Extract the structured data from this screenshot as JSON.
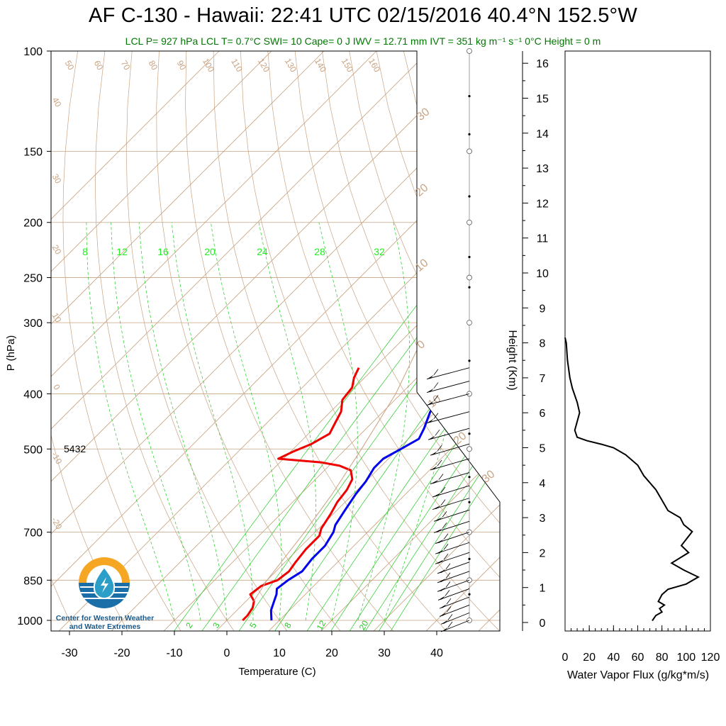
{
  "title": "AF C-130 - Hawaii: 22:41 UTC 02/15/2016  40.4°N 152.5°W",
  "subtitle": "LCL P= 927 hPa  LCL T= 0.7°C  SWI= 10  Cape= 0 J  IWV = 12.71 mm  IVT = 351 kg m⁻¹ s⁻¹  0°C Height = 0 m",
  "logo": {
    "name": "cw3e-logo-icon",
    "line1": "Center for Western Weather",
    "line2": "and Water Extremes",
    "colors": {
      "orange": "#f5a623",
      "blue": "#1a6fa8",
      "teal": "#2c9fc9"
    }
  },
  "chart_data": [
    {
      "type": "line",
      "subtype": "skew-t",
      "xlabel": "Temperature (C)",
      "ylabel": "P (hPa)",
      "y_scale": "log",
      "xlim": [
        -34,
        52
      ],
      "ylim": [
        1050,
        100
      ],
      "x_ticks": [
        "-30",
        "-20",
        "-10",
        "0",
        "10",
        "20",
        "30",
        "40"
      ],
      "y_ticks": [
        "100",
        "150",
        "200",
        "250",
        "300",
        "400",
        "500",
        "700",
        "850",
        "1000"
      ],
      "annotation": "5432",
      "mixing_ratio_labels": [
        "8",
        "12",
        "16",
        "20",
        "24",
        "28",
        "32"
      ],
      "low_mixing_labels": [
        "2",
        "3",
        "5",
        "8",
        "12",
        "20"
      ],
      "dry_adiabat_labels": [
        "50",
        "60",
        "70",
        "80",
        "90",
        "100",
        "110",
        "120",
        "130",
        "140",
        "150",
        "160"
      ],
      "left_theta_labels": [
        "40",
        "30",
        "20",
        "10",
        "0",
        "-10",
        "-20"
      ],
      "right_theta_labels": [
        "30",
        "20",
        "10",
        "0",
        "10",
        "20",
        "30"
      ],
      "colors": {
        "temperature": "#0000ee",
        "dewpoint": "#ee0000",
        "adiabat": "#c8a382",
        "mixing": "#22cc22",
        "parcel": "#c8a382"
      },
      "series": [
        {
          "name": "Temperature",
          "color": "#0000ee",
          "points": [
            [
              -6.5,
              360
            ],
            [
              -4.5,
              380
            ],
            [
              -2,
              400
            ],
            [
              -1,
              430
            ],
            [
              1,
              460
            ],
            [
              2,
              480
            ],
            [
              0.5,
              500
            ],
            [
              -1,
              520
            ],
            [
              -1,
              540
            ],
            [
              0,
              570
            ],
            [
              0.5,
              600
            ],
            [
              1.5,
              640
            ],
            [
              2.5,
              680
            ],
            [
              3.5,
              700
            ],
            [
              4.5,
              740
            ],
            [
              4.5,
              780
            ],
            [
              5,
              820
            ],
            [
              4,
              850
            ],
            [
              3.5,
              880
            ],
            [
              4.5,
              900
            ],
            [
              5.5,
              930
            ],
            [
              6.5,
              960
            ],
            [
              8.5,
              1000
            ]
          ]
        },
        {
          "name": "Dewpoint",
          "color": "#ee0000",
          "points": [
            [
              -23,
              360
            ],
            [
              -22,
              375
            ],
            [
              -20.5,
              390
            ],
            [
              -20,
              410
            ],
            [
              -18,
              430
            ],
            [
              -17,
              450
            ],
            [
              -16,
              470
            ],
            [
              -17.5,
              490
            ],
            [
              -19.5,
              505
            ],
            [
              -21,
              520
            ],
            [
              -12,
              528
            ],
            [
              -8,
              535
            ],
            [
              -5,
              545
            ],
            [
              -3,
              565
            ],
            [
              -2,
              590
            ],
            [
              -1.5,
              620
            ],
            [
              -0.5,
              650
            ],
            [
              0.5,
              690
            ],
            [
              1.5,
              710
            ],
            [
              1.5,
              750
            ],
            [
              2,
              790
            ],
            [
              2.5,
              820
            ],
            [
              2,
              850
            ],
            [
              0,
              870
            ],
            [
              -0.5,
              900
            ],
            [
              1.5,
              925
            ],
            [
              2.5,
              950
            ],
            [
              3,
              980
            ],
            [
              3,
              1000
            ]
          ]
        },
        {
          "name": "Parcel",
          "color": "#c8a382",
          "points": [
            [
              1.5,
              927
            ],
            [
              0,
              850
            ],
            [
              -2,
              700
            ],
            [
              -4,
              600
            ],
            [
              -7,
              500
            ],
            [
              -11,
              400
            ],
            [
              -18,
              300
            ],
            [
              -26,
              230
            ],
            [
              -30,
              100
            ]
          ]
        }
      ]
    },
    {
      "type": "line",
      "xlabel": "Water Vapor Flux (g/kg*m/s)",
      "ylabel": "Height (Km)",
      "xlim": [
        0,
        120
      ],
      "ylim": [
        0,
        16.5
      ],
      "x_ticks": [
        "0",
        "20",
        "40",
        "60",
        "80",
        "100",
        "120"
      ],
      "y_ticks": [
        "0",
        "1",
        "2",
        "3",
        "4",
        "5",
        "6",
        "7",
        "8",
        "9",
        "10",
        "11",
        "12",
        "13",
        "14",
        "15",
        "16"
      ],
      "series": [
        {
          "name": "Water Vapor Flux",
          "points": [
            [
              72,
              0.05
            ],
            [
              75,
              0.2
            ],
            [
              80,
              0.3
            ],
            [
              78,
              0.4
            ],
            [
              82,
              0.5
            ],
            [
              77,
              0.6
            ],
            [
              80,
              0.8
            ],
            [
              85,
              0.95
            ],
            [
              100,
              1.1
            ],
            [
              110,
              1.3
            ],
            [
              98,
              1.5
            ],
            [
              88,
              1.7
            ],
            [
              102,
              2.0
            ],
            [
              96,
              2.2
            ],
            [
              105,
              2.6
            ],
            [
              98,
              2.8
            ],
            [
              95,
              3.0
            ],
            [
              85,
              3.2
            ],
            [
              80,
              3.5
            ],
            [
              75,
              3.8
            ],
            [
              65,
              4.2
            ],
            [
              60,
              4.5
            ],
            [
              50,
              4.8
            ],
            [
              40,
              5.0
            ],
            [
              30,
              5.1
            ],
            [
              18,
              5.2
            ],
            [
              10,
              5.3
            ],
            [
              8,
              5.5
            ],
            [
              12,
              6.0
            ],
            [
              10,
              6.3
            ],
            [
              6,
              6.7
            ],
            [
              4,
              7.0
            ],
            [
              2,
              7.5
            ],
            [
              1,
              8.0
            ],
            [
              0,
              8.15
            ]
          ]
        }
      ]
    },
    {
      "type": "scatter",
      "subtype": "wind-barbs",
      "points": [
        [
          1000,
          10,
          40
        ],
        [
          970,
          10,
          40
        ],
        [
          940,
          10,
          42
        ],
        [
          910,
          10,
          42
        ],
        [
          880,
          10,
          44
        ],
        [
          850,
          12,
          45
        ],
        [
          820,
          12,
          45
        ],
        [
          790,
          12,
          45
        ],
        [
          760,
          12,
          48
        ],
        [
          730,
          12,
          48
        ],
        [
          700,
          12,
          48
        ],
        [
          670,
          12,
          50
        ],
        [
          640,
          12,
          50
        ],
        [
          610,
          12,
          52
        ],
        [
          580,
          12,
          52
        ],
        [
          550,
          12,
          55
        ],
        [
          520,
          10,
          55
        ],
        [
          490,
          10,
          55
        ],
        [
          460,
          10,
          58
        ],
        [
          430,
          10,
          60
        ],
        [
          400,
          10,
          60
        ],
        [
          380,
          10,
          60
        ],
        [
          360,
          10,
          60
        ]
      ]
    }
  ]
}
